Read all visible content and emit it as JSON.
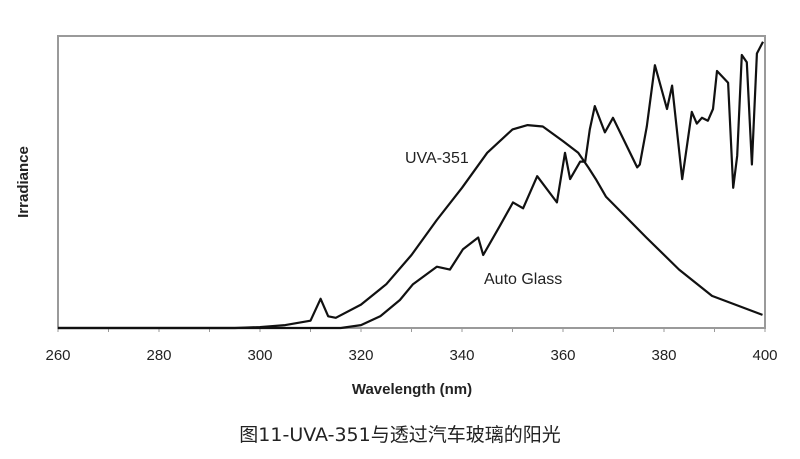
{
  "chart_data": {
    "type": "line",
    "title": "",
    "caption": "图11-UVA-351与透过汽车玻璃的阳光",
    "xlabel": "Wavelength (nm)",
    "ylabel": "Irradiance",
    "xlim": [
      260,
      400
    ],
    "ylim": [
      0,
      100
    ],
    "xticks": [
      260,
      280,
      300,
      320,
      340,
      360,
      380,
      400
    ],
    "grid": false,
    "legend": "none",
    "series": [
      {
        "name": "UVA-351",
        "color": "#111111",
        "points": [
          [
            260,
            0
          ],
          [
            295,
            0
          ],
          [
            300,
            0.3
          ],
          [
            305,
            1
          ],
          [
            310,
            2.5
          ],
          [
            312,
            10
          ],
          [
            313.5,
            4
          ],
          [
            315,
            3.5
          ],
          [
            320,
            8
          ],
          [
            325,
            15
          ],
          [
            330,
            25
          ],
          [
            335,
            37
          ],
          [
            340,
            48
          ],
          [
            345,
            60
          ],
          [
            350,
            68
          ],
          [
            353,
            69.5
          ],
          [
            356,
            69
          ],
          [
            360,
            64
          ],
          [
            363,
            60
          ],
          [
            365,
            55
          ],
          [
            366.5,
            51
          ],
          [
            368.5,
            45
          ],
          [
            376.5,
            31
          ],
          [
            383,
            20
          ],
          [
            389.5,
            11
          ],
          [
            399.5,
            4.5
          ]
        ]
      },
      {
        "name": "Auto Glass",
        "color": "#111111",
        "points": [
          [
            260,
            0
          ],
          [
            316,
            0
          ],
          [
            320,
            1
          ],
          [
            323.8,
            4
          ],
          [
            327.7,
            9.6
          ],
          [
            330.3,
            15
          ],
          [
            335,
            21
          ],
          [
            337.6,
            20
          ],
          [
            340.2,
            27
          ],
          [
            343.2,
            31
          ],
          [
            344.2,
            25
          ],
          [
            347.5,
            35
          ],
          [
            350.1,
            43
          ],
          [
            352.1,
            41
          ],
          [
            354.9,
            52
          ],
          [
            358.8,
            43
          ],
          [
            360.4,
            60
          ],
          [
            361.4,
            51
          ],
          [
            363.4,
            57
          ],
          [
            364.4,
            57
          ],
          [
            365.3,
            68
          ],
          [
            366.3,
            76
          ],
          [
            368.3,
            67
          ],
          [
            369.9,
            72
          ],
          [
            374.7,
            55
          ],
          [
            375.2,
            56
          ],
          [
            376.6,
            69
          ],
          [
            378.2,
            90
          ],
          [
            380.6,
            75
          ],
          [
            381.6,
            83
          ],
          [
            383.6,
            51
          ],
          [
            385.5,
            74
          ],
          [
            386.5,
            70
          ],
          [
            387.5,
            72
          ],
          [
            388.7,
            71
          ],
          [
            389.7,
            75
          ],
          [
            390.5,
            88
          ],
          [
            392.7,
            84
          ],
          [
            393.7,
            48
          ],
          [
            394.5,
            59
          ],
          [
            395.4,
            93.5
          ],
          [
            396.4,
            91
          ],
          [
            397.4,
            56
          ],
          [
            398.4,
            94
          ],
          [
            399.6,
            98
          ]
        ]
      }
    ],
    "annotations": [
      "UVA-351",
      "Auto Glass"
    ]
  }
}
